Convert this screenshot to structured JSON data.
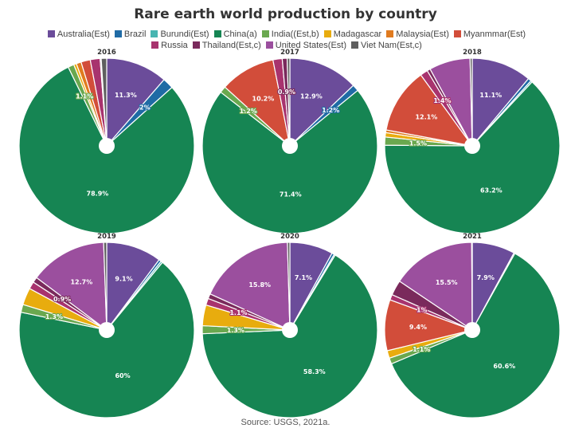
{
  "title": "Rare earth world production by country",
  "source": "Source: USGS, 2021a.",
  "legend": [
    {
      "name": "Australia(Est)",
      "color": "#6b4c9a"
    },
    {
      "name": "Brazil",
      "color": "#1f6ba5"
    },
    {
      "name": "Burundi(Est)",
      "color": "#48b5b1"
    },
    {
      "name": "China(a)",
      "color": "#168553"
    },
    {
      "name": "India((Est,b)",
      "color": "#6aa84f"
    },
    {
      "name": "Madagascar",
      "color": "#e8ac0e"
    },
    {
      "name": "Malaysia(Est)",
      "color": "#e07b1f"
    },
    {
      "name": "Myanmmar(Est)",
      "color": "#d24d3a"
    },
    {
      "name": "Russia",
      "color": "#a8336e"
    },
    {
      "name": "Thailand(Est,c)",
      "color": "#7a2a5c"
    },
    {
      "name": "United States(Est)",
      "color": "#9b4f9e"
    },
    {
      "name": "Viet Nam(Est,c)",
      "color": "#5f5f5f"
    }
  ],
  "chart_data": [
    {
      "type": "pie",
      "title": "2016",
      "slices": [
        {
          "series": "Australia(Est)",
          "value": 11.3,
          "label": "11.3%"
        },
        {
          "series": "Brazil",
          "value": 2.0,
          "label": "2%"
        },
        {
          "series": "Burundi(Est)",
          "value": 0.0,
          "label": ""
        },
        {
          "series": "China(a)",
          "value": 78.9,
          "label": "78.9%"
        },
        {
          "series": "India((Est,b)",
          "value": 1.1,
          "label": "1.1%"
        },
        {
          "series": "Madagascar",
          "value": 0.5,
          "label": ""
        },
        {
          "series": "Malaysia(Est)",
          "value": 0.9,
          "label": ""
        },
        {
          "series": "Myanmmar(Est)",
          "value": 1.7,
          "label": ""
        },
        {
          "series": "Russia",
          "value": 1.8,
          "label": ""
        },
        {
          "series": "Thailand(Est,c)",
          "value": 0.2,
          "label": ""
        },
        {
          "series": "United States(Est)",
          "value": 0.0,
          "label": ""
        },
        {
          "series": "Viet Nam(Est,c)",
          "value": 1.0,
          "label": ""
        }
      ]
    },
    {
      "type": "pie",
      "title": "2017",
      "slices": [
        {
          "series": "Australia(Est)",
          "value": 12.9,
          "label": "12.9%"
        },
        {
          "series": "Brazil",
          "value": 1.2,
          "label": "1.2%"
        },
        {
          "series": "Burundi(Est)",
          "value": 0.0,
          "label": ""
        },
        {
          "series": "China(a)",
          "value": 71.4,
          "label": "71.4%"
        },
        {
          "series": "India((Est,b)",
          "value": 1.2,
          "label": "1.2%"
        },
        {
          "series": "Madagascar",
          "value": 0.0,
          "label": ""
        },
        {
          "series": "Malaysia(Est)",
          "value": 0.0,
          "label": ""
        },
        {
          "series": "Myanmmar(Est)",
          "value": 10.2,
          "label": "10.2%"
        },
        {
          "series": "Russia",
          "value": 1.7,
          "label": ""
        },
        {
          "series": "Thailand(Est,c)",
          "value": 0.9,
          "label": "0.9%"
        },
        {
          "series": "United States(Est)",
          "value": 0.0,
          "label": ""
        },
        {
          "series": "Viet Nam(Est,c)",
          "value": 0.5,
          "label": ""
        }
      ]
    },
    {
      "type": "pie",
      "title": "2018",
      "slices": [
        {
          "series": "Australia(Est)",
          "value": 11.1,
          "label": "11.1%"
        },
        {
          "series": "Brazil",
          "value": 0.6,
          "label": ""
        },
        {
          "series": "Burundi(Est)",
          "value": 0.3,
          "label": ""
        },
        {
          "series": "China(a)",
          "value": 63.2,
          "label": "63.2%"
        },
        {
          "series": "India((Est,b)",
          "value": 1.5,
          "label": "1.5%"
        },
        {
          "series": "Madagascar",
          "value": 0.8,
          "label": ""
        },
        {
          "series": "Malaysia(Est)",
          "value": 0.5,
          "label": ""
        },
        {
          "series": "Myanmmar(Est)",
          "value": 12.1,
          "label": "12.1%"
        },
        {
          "series": "Russia",
          "value": 1.4,
          "label": "1.4%"
        },
        {
          "series": "Thailand(Est,c)",
          "value": 0.6,
          "label": ""
        },
        {
          "series": "United States(Est)",
          "value": 7.6,
          "label": ""
        },
        {
          "series": "Viet Nam(Est,c)",
          "value": 0.4,
          "label": ""
        }
      ]
    },
    {
      "type": "pie",
      "title": "2019",
      "slices": [
        {
          "series": "Australia(Est)",
          "value": 9.1,
          "label": "9.1%"
        },
        {
          "series": "Brazil",
          "value": 0.4,
          "label": ""
        },
        {
          "series": "Burundi(Est)",
          "value": 0.3,
          "label": ""
        },
        {
          "series": "China(a)",
          "value": 60.0,
          "label": "60%"
        },
        {
          "series": "India((Est,b)",
          "value": 1.3,
          "label": "1.3%"
        },
        {
          "series": "Madagascar",
          "value": 2.8,
          "label": ""
        },
        {
          "series": "Malaysia(Est)",
          "value": 0.0,
          "label": ""
        },
        {
          "series": "Myanmmar(Est)",
          "value": 0.0,
          "label": ""
        },
        {
          "series": "Russia",
          "value": 1.2,
          "label": ""
        },
        {
          "series": "Thailand(Est,c)",
          "value": 0.9,
          "label": "0.9%"
        },
        {
          "series": "United States(Est)",
          "value": 12.7,
          "label": "12.7%"
        },
        {
          "series": "Viet Nam(Est,c)",
          "value": 0.5,
          "label": ""
        }
      ]
    },
    {
      "type": "pie",
      "title": "2020",
      "slices": [
        {
          "series": "Australia(Est)",
          "value": 7.1,
          "label": "7.1%"
        },
        {
          "series": "Brazil",
          "value": 0.4,
          "label": ""
        },
        {
          "series": "Burundi(Est)",
          "value": 0.2,
          "label": ""
        },
        {
          "series": "China(a)",
          "value": 58.3,
          "label": "58.3%"
        },
        {
          "series": "India((Est,b)",
          "value": 1.3,
          "label": "1.3%"
        },
        {
          "series": "Madagascar",
          "value": 3.4,
          "label": ""
        },
        {
          "series": "Malaysia(Est)",
          "value": 0.0,
          "label": ""
        },
        {
          "series": "Myanmmar(Est)",
          "value": 0.0,
          "label": ""
        },
        {
          "series": "Russia",
          "value": 1.1,
          "label": "1.1%"
        },
        {
          "series": "Thailand(Est,c)",
          "value": 0.8,
          "label": ""
        },
        {
          "series": "United States(Est)",
          "value": 15.8,
          "label": "15.8%"
        },
        {
          "series": "Viet Nam(Est,c)",
          "value": 0.4,
          "label": ""
        }
      ]
    },
    {
      "type": "pie",
      "title": "2021",
      "slices": [
        {
          "series": "Australia(Est)",
          "value": 7.9,
          "label": "7.9%"
        },
        {
          "series": "Brazil",
          "value": 0.2,
          "label": ""
        },
        {
          "series": "Burundi(Est)",
          "value": 0.0,
          "label": ""
        },
        {
          "series": "China(a)",
          "value": 60.6,
          "label": "60.6%"
        },
        {
          "series": "India((Est,b)",
          "value": 1.1,
          "label": "1.1%"
        },
        {
          "series": "Madagascar",
          "value": 1.4,
          "label": ""
        },
        {
          "series": "Malaysia(Est)",
          "value": 0.0,
          "label": ""
        },
        {
          "series": "Myanmmar(Est)",
          "value": 9.4,
          "label": "9.4%"
        },
        {
          "series": "Russia",
          "value": 1.0,
          "label": "1%"
        },
        {
          "series": "Thailand(Est,c)",
          "value": 2.8,
          "label": ""
        },
        {
          "series": "United States(Est)",
          "value": 15.5,
          "label": "15.5%"
        },
        {
          "series": "Viet Nam(Est,c)",
          "value": 0.1,
          "label": ""
        }
      ]
    }
  ]
}
